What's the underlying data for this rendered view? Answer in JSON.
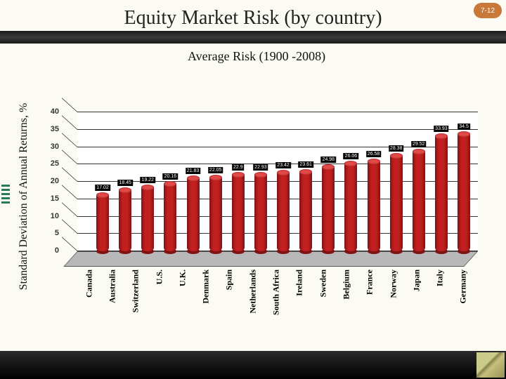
{
  "page_number": "7-12",
  "title": "Equity Market Risk (by country)",
  "chart": {
    "type": "bar",
    "subtitle": "Average Risk (1900 -2008)",
    "y_axis_label": "Standard Deviation of Annual Returns, %",
    "ylim": [
      0,
      40
    ],
    "ytick_step": 5,
    "yticks": [
      0,
      5,
      10,
      15,
      20,
      25,
      30,
      35,
      40
    ],
    "bar_color": "#c21f1f",
    "bar_top_color": "#e24a4a",
    "bar_shadow_color": "#7e1313",
    "background_color": "#fbfbf3",
    "grid_color": "#000000",
    "floor_color": "#b8b8b8",
    "tick_fontsize": 11,
    "tick_fontweight": "bold",
    "label_fontsize": 12,
    "subtitle_fontsize": 18,
    "countries": [
      {
        "name": "Canada",
        "value": 17.02
      },
      {
        "name": "Australia",
        "value": 18.45
      },
      {
        "name": "Switzerland",
        "value": 19.22
      },
      {
        "name": "U.S.",
        "value": 20.16
      },
      {
        "name": "U.K.",
        "value": 21.83
      },
      {
        "name": "Denmark",
        "value": 22.05
      },
      {
        "name": "Spain",
        "value": 22.9
      },
      {
        "name": "Netherlands",
        "value": 22.93
      },
      {
        "name": "South Africa",
        "value": 23.42
      },
      {
        "name": "Ireland",
        "value": 23.61
      },
      {
        "name": "Sweden",
        "value": 24.98
      },
      {
        "name": "Belgium",
        "value": 26.06
      },
      {
        "name": "France",
        "value": 26.58
      },
      {
        "name": "Norway",
        "value": 28.38
      },
      {
        "name": "Japan",
        "value": 29.52
      },
      {
        "name": "Italy",
        "value": 33.93
      },
      {
        "name": "Germany",
        "value": 34.5
      }
    ]
  },
  "colors": {
    "accent_green": "#2a7a5a",
    "badge": "#c87838",
    "text": "#111111"
  }
}
